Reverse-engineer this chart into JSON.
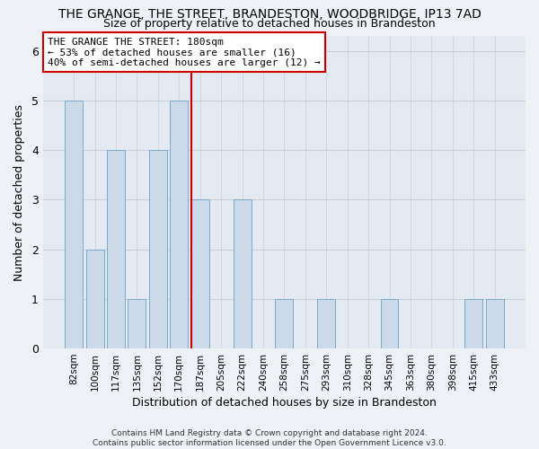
{
  "title": "THE GRANGE, THE STREET, BRANDESTON, WOODBRIDGE, IP13 7AD",
  "subtitle": "Size of property relative to detached houses in Brandeston",
  "xlabel": "Distribution of detached houses by size in Brandeston",
  "ylabel": "Number of detached properties",
  "categories": [
    "82sqm",
    "100sqm",
    "117sqm",
    "135sqm",
    "152sqm",
    "170sqm",
    "187sqm",
    "205sqm",
    "222sqm",
    "240sqm",
    "258sqm",
    "275sqm",
    "293sqm",
    "310sqm",
    "328sqm",
    "345sqm",
    "363sqm",
    "380sqm",
    "398sqm",
    "415sqm",
    "433sqm"
  ],
  "values": [
    5,
    2,
    4,
    1,
    4,
    5,
    3,
    0,
    3,
    0,
    1,
    0,
    1,
    0,
    0,
    1,
    0,
    0,
    0,
    1,
    1
  ],
  "bar_color": "#ccd9e8",
  "bar_edge_color": "#7aaac8",
  "highlight_index": 6,
  "highlight_line_color": "#cc0000",
  "annotation_text": "THE GRANGE THE STREET: 180sqm\n← 53% of detached houses are smaller (16)\n40% of semi-detached houses are larger (12) →",
  "annotation_box_color": "white",
  "annotation_box_edge": "#cc0000",
  "ylim": [
    0,
    6.3
  ],
  "yticks": [
    0,
    1,
    2,
    3,
    4,
    5,
    6
  ],
  "footer": "Contains HM Land Registry data © Crown copyright and database right 2024.\nContains public sector information licensed under the Open Government Licence v3.0.",
  "bg_color": "#eef2f7",
  "plot_bg_color": "#e4eaf2",
  "grid_color": "#c8d0dc"
}
